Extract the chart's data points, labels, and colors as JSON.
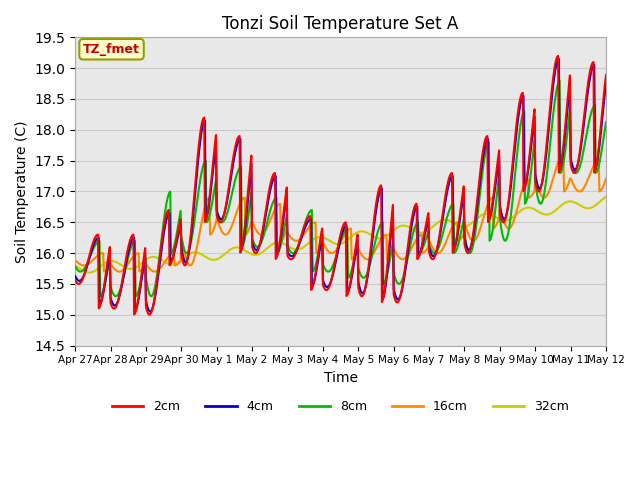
{
  "title": "Tonzi Soil Temperature Set A",
  "xlabel": "Time",
  "ylabel": "Soil Temperature (C)",
  "ylim": [
    14.5,
    19.5
  ],
  "series_colors": {
    "2cm": "#ff0000",
    "4cm": "#0000cc",
    "8cm": "#00bb00",
    "16cm": "#ff8800",
    "32cm": "#cccc00"
  },
  "annotation_text": "TZ_fmet",
  "annotation_color": "#cc0000",
  "annotation_bg": "#ffffcc",
  "annotation_border": "#999900",
  "grid_color": "#cccccc",
  "bg_color": "#e8e8e8",
  "legend_labels": [
    "2cm",
    "4cm",
    "8cm",
    "16cm",
    "32cm"
  ],
  "xtick_labels": [
    "Apr 27",
    "Apr 28",
    "Apr 29",
    "Apr 30",
    "May 1",
    "May 2",
    "May 3",
    "May 4",
    "May 5",
    "May 6",
    "May 7",
    "May 8",
    "May 9",
    "May 10",
    "May 11",
    "May 12"
  ],
  "ytick_vals": [
    14.5,
    15.0,
    15.5,
    16.0,
    16.5,
    17.0,
    17.5,
    18.0,
    18.5,
    19.0,
    19.5
  ],
  "n_days": 15
}
